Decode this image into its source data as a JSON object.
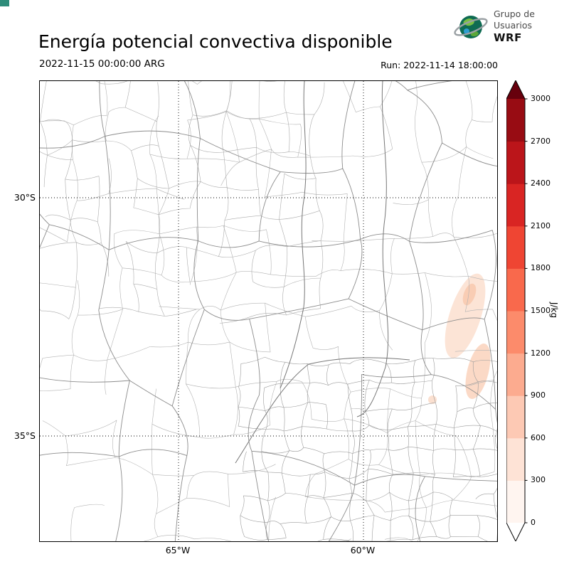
{
  "header": {
    "title": "Energía potencial convectiva disponible",
    "valid_time": "2022-11-15 00:00:00 ARG",
    "run_label": "Run: 2022-11-14 18:00:00"
  },
  "logo": {
    "line1": "Grupo de",
    "line2": "Usuarios",
    "line3": "WRF"
  },
  "axes": {
    "lat_ticks": [
      {
        "label": "30°S"
      },
      {
        "label": "35°S"
      }
    ],
    "lon_ticks": [
      {
        "label": "65°W"
      },
      {
        "label": "60°W"
      }
    ]
  },
  "colorbar": {
    "unit": "J/kg",
    "ticks": [
      0,
      300,
      600,
      900,
      1200,
      1500,
      1800,
      2100,
      2400,
      2700,
      3000
    ],
    "segment_colors_low_to_high": [
      "#fff5f0",
      "#fee3d6",
      "#fdc9b4",
      "#fcab8f",
      "#fc8b6b",
      "#f9694c",
      "#ef4533",
      "#d92523",
      "#bb151a",
      "#980c13"
    ],
    "extend_under_color": "#ffffff",
    "extend_over_color": "#67000d"
  },
  "chart_data": {
    "type": "heatmap",
    "title": "Energía potencial convectiva disponible",
    "variable_unit": "J/kg",
    "colorbar_ticks": [
      0,
      300,
      600,
      900,
      1200,
      1500,
      1800,
      2100,
      2400,
      2700,
      3000
    ],
    "colorbar_range": [
      0,
      3000
    ],
    "valid_time": "2022-11-15 00:00:00 ARG",
    "run_time": "2022-11-14 18:00:00",
    "lat_tick_labels": [
      "30°S",
      "35°S"
    ],
    "lon_tick_labels": [
      "65°W",
      "60°W"
    ],
    "observed_field": "CAPE near 0 J/kg over almost the whole domain; faint patches up to ~300 J/kg near the east-central part of the map"
  }
}
